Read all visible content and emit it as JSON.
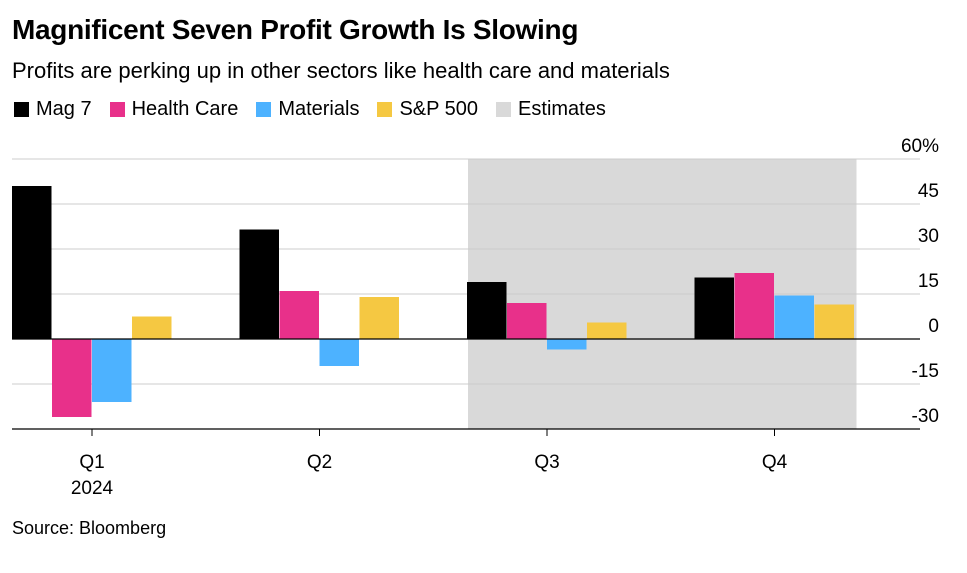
{
  "chart_data": {
    "type": "bar",
    "title": "Magnificent Seven Profit Growth Is Slowing",
    "subtitle": "Profits are perking up in other sectors like health care and materials",
    "categories": [
      "Q1",
      "Q2",
      "Q3",
      "Q4"
    ],
    "category_sublabels": [
      "2024",
      "",
      "",
      ""
    ],
    "series": [
      {
        "name": "Mag 7",
        "color": "#000000",
        "values": [
          51,
          36.5,
          19,
          20.5
        ]
      },
      {
        "name": "Health Care",
        "color": "#e8308a",
        "values": [
          -26,
          16,
          12,
          22
        ]
      },
      {
        "name": "Materials",
        "color": "#4db2ff",
        "values": [
          -21,
          -9,
          -3.5,
          14.5
        ]
      },
      {
        "name": "S&P 500",
        "color": "#f5c842",
        "values": [
          7.5,
          14,
          5.5,
          11.5
        ]
      }
    ],
    "estimates": {
      "label": "Estimates",
      "color": "#d9d9d9",
      "categories": [
        "Q3",
        "Q4"
      ]
    },
    "ylim": [
      -30,
      60
    ],
    "y_ticks": [
      -30,
      -15,
      0,
      15,
      30,
      45,
      60
    ],
    "y_tick_labels": [
      "-30",
      "-15",
      "0",
      "15",
      "30",
      "45",
      "60%"
    ],
    "grid": true,
    "legend_position": "top-left",
    "source": "Source: Bloomberg"
  }
}
